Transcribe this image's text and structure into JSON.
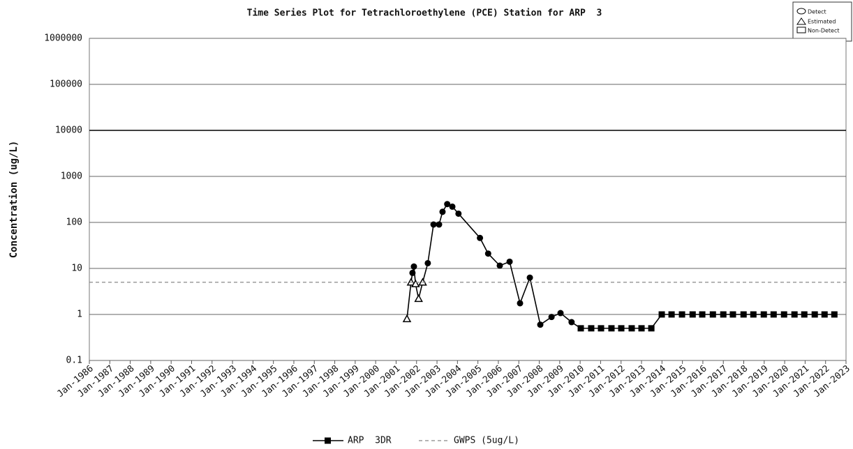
{
  "chart_data": {
    "type": "line",
    "title": "Time Series Plot for Tetrachloroethylene (PCE) Station for ARP  3",
    "y_label": "Concentration (ug/L)",
    "marker_legend": [
      "Detect",
      "Estimated",
      "Non-Detect"
    ],
    "log_y": true,
    "grid": true,
    "xlim": [
      1986,
      2023
    ],
    "xticks": [
      {
        "value": 1986,
        "label": "Jan-1986"
      },
      {
        "value": 1987,
        "label": "Jan-1987"
      },
      {
        "value": 1988,
        "label": "Jan-1988"
      },
      {
        "value": 1989,
        "label": "Jan-1989"
      },
      {
        "value": 1990,
        "label": "Jan-1990"
      },
      {
        "value": 1991,
        "label": "Jan-1991"
      },
      {
        "value": 1992,
        "label": "Jan-1992"
      },
      {
        "value": 1993,
        "label": "Jan-1993"
      },
      {
        "value": 1994,
        "label": "Jan-1994"
      },
      {
        "value": 1995,
        "label": "Jan-1995"
      },
      {
        "value": 1996,
        "label": "Jan-1996"
      },
      {
        "value": 1997,
        "label": "Jan-1997"
      },
      {
        "value": 1998,
        "label": "Jan-1998"
      },
      {
        "value": 1999,
        "label": "Jan-1999"
      },
      {
        "value": 2000,
        "label": "Jan-2000"
      },
      {
        "value": 2001,
        "label": "Jan-2001"
      },
      {
        "value": 2002,
        "label": "Jan-2002"
      },
      {
        "value": 2003,
        "label": "Jan-2003"
      },
      {
        "value": 2004,
        "label": "Jan-2004"
      },
      {
        "value": 2005,
        "label": "Jan-2005"
      },
      {
        "value": 2006,
        "label": "Jan-2006"
      },
      {
        "value": 2007,
        "label": "Jan-2007"
      },
      {
        "value": 2008,
        "label": "Jan-2008"
      },
      {
        "value": 2009,
        "label": "Jan-2009"
      },
      {
        "value": 2010,
        "label": "Jan-2010"
      },
      {
        "value": 2011,
        "label": "Jan-2011"
      },
      {
        "value": 2012,
        "label": "Jan-2012"
      },
      {
        "value": 2013,
        "label": "Jan-2013"
      },
      {
        "value": 2014,
        "label": "Jan-2014"
      },
      {
        "value": 2015,
        "label": "Jan-2015"
      },
      {
        "value": 2016,
        "label": "Jan-2016"
      },
      {
        "value": 2017,
        "label": "Jan-2017"
      },
      {
        "value": 2018,
        "label": "Jan-2018"
      },
      {
        "value": 2019,
        "label": "Jan-2019"
      },
      {
        "value": 2020,
        "label": "Jan-2020"
      },
      {
        "value": 2021,
        "label": "Jan-2021"
      },
      {
        "value": 2022,
        "label": "Jan-2022"
      },
      {
        "value": 2023,
        "label": "Jan-2023"
      }
    ],
    "ylim": [
      0.1,
      1000000
    ],
    "yticks": [
      0.1,
      1,
      10,
      100,
      1000,
      10000,
      100000,
      1000000
    ],
    "series": [
      {
        "name": "ARP  3DR",
        "color": "#000000",
        "x": [
          2001.53,
          2001.73,
          2001.8,
          2001.87,
          2001.95,
          2002.1,
          2002.3,
          2002.55,
          2002.83,
          2003.1,
          2003.27,
          2003.5,
          2003.75,
          2004.05,
          2005.1,
          2005.5,
          2006.07,
          2006.55,
          2007.06,
          2007.54,
          2008.05,
          2008.6,
          2009.04,
          2009.58,
          2010.03,
          2010.54,
          2011.02,
          2011.53,
          2012.01,
          2012.52,
          2013.0,
          2013.48,
          2013.99,
          2014.47,
          2014.98,
          2015.5,
          2015.97,
          2016.49,
          2017.0,
          2017.47,
          2017.99,
          2018.47,
          2018.98,
          2019.46,
          2019.97,
          2020.48,
          2020.96,
          2021.47,
          2021.95,
          2022.43
        ],
        "values": [
          0.8,
          5,
          8,
          11,
          4.6,
          2.2,
          5,
          13,
          90,
          90,
          170,
          250,
          220,
          155,
          46,
          21,
          11.5,
          14,
          1.75,
          6.3,
          0.6,
          0.88,
          1.07,
          0.68,
          0.5,
          0.5,
          0.5,
          0.5,
          0.5,
          0.5,
          0.5,
          0.5,
          1,
          1,
          1,
          1,
          1,
          1,
          1,
          1,
          1,
          1,
          1,
          1,
          1,
          1,
          1,
          1,
          1,
          1
        ],
        "markers": [
          "triangle",
          "triangle",
          "circle",
          "circle",
          "triangle",
          "triangle",
          "triangle",
          "circle",
          "circle",
          "circle",
          "circle",
          "circle",
          "circle",
          "circle",
          "circle",
          "circle",
          "circle",
          "circle",
          "circle",
          "circle",
          "circle",
          "circle",
          "circle",
          "circle",
          "square",
          "square",
          "square",
          "square",
          "square",
          "square",
          "square",
          "square",
          "square",
          "square",
          "square",
          "square",
          "square",
          "square",
          "square",
          "square",
          "square",
          "square",
          "square",
          "square",
          "square",
          "square",
          "square",
          "square",
          "square",
          "square"
        ]
      },
      {
        "name": "GWPS (5ug/L)",
        "color": "#888888",
        "dashed": true,
        "x": [
          1986,
          2023
        ],
        "values": [
          5,
          5
        ]
      }
    ]
  }
}
